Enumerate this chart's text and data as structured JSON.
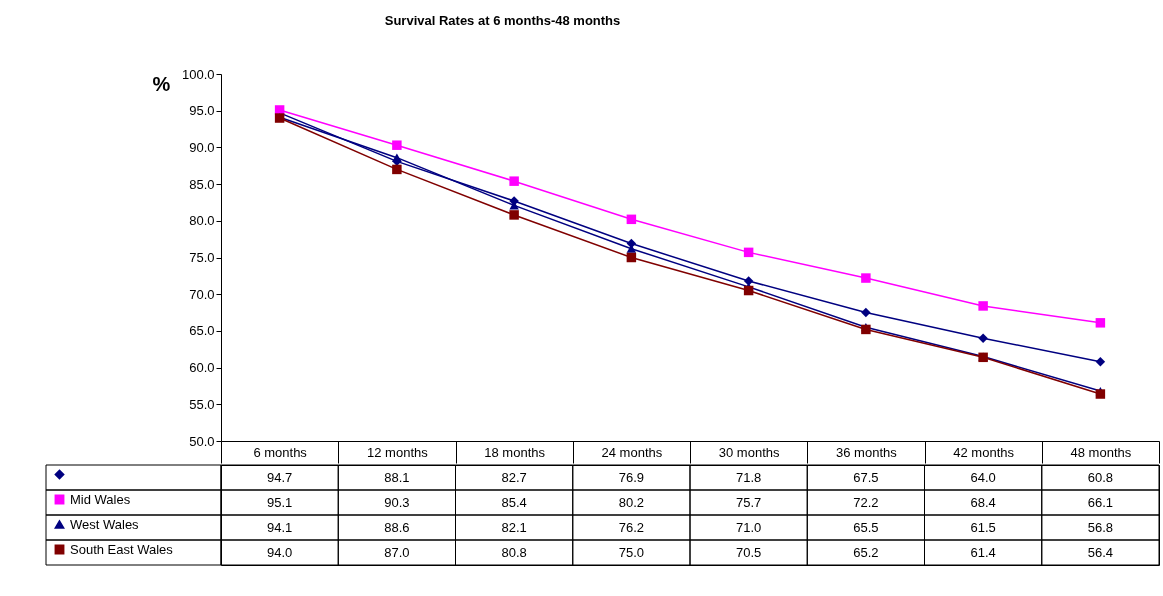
{
  "chart_data": {
    "type": "line",
    "title": "Survival Rates at 6 months-48 months",
    "ylabel": "%",
    "categories": [
      "6 months",
      "12 months",
      "18 months",
      "24 months",
      "30 months",
      "36 months",
      "42 months",
      "48 months"
    ],
    "series": [
      {
        "color": "#000080",
        "marker": "diamond",
        "values": [
          94.7,
          88.1,
          82.7,
          76.9,
          71.8,
          67.5,
          64.0,
          60.8
        ],
        "value_labels": [
          "94.7",
          "88.1",
          "82.7",
          "76.9",
          "71.8",
          "67.5",
          "64.0",
          "60.8"
        ]
      },
      {
        "name": "Mid Wales",
        "color": "#ff00ff",
        "marker": "square",
        "values": [
          95.1,
          90.3,
          85.4,
          80.2,
          75.7,
          72.2,
          68.4,
          66.1
        ],
        "value_labels": [
          "95.1",
          "90.3",
          "85.4",
          "80.2",
          "75.7",
          "72.2",
          "68.4",
          "66.1"
        ]
      },
      {
        "name": "West Wales",
        "color": "#000080",
        "marker": "triangle",
        "values": [
          94.1,
          88.6,
          82.1,
          76.2,
          71.0,
          65.5,
          61.5,
          56.8
        ],
        "value_labels": [
          "94.1",
          "88.6",
          "82.1",
          "76.2",
          "71.0",
          "65.5",
          "61.5",
          "56.8"
        ]
      },
      {
        "name": "South East Wales",
        "color": "#800000",
        "marker": "square",
        "values": [
          94.0,
          87.0,
          80.8,
          75.0,
          70.5,
          65.2,
          61.4,
          56.4
        ],
        "value_labels": [
          "94.0",
          "87.0",
          "80.8",
          "75.0",
          "70.5",
          "65.2",
          "61.4",
          "56.4"
        ]
      }
    ],
    "ylim": [
      50,
      100
    ],
    "yticks": [
      {
        "value": 50,
        "label": "50.0"
      },
      {
        "value": 55,
        "label": "55.0"
      },
      {
        "value": 60,
        "label": "60.0"
      },
      {
        "value": 65,
        "label": "65.0"
      },
      {
        "value": 70,
        "label": "70.0"
      },
      {
        "value": 75,
        "label": "75.0"
      },
      {
        "value": 80,
        "label": "80.0"
      },
      {
        "value": 85,
        "label": "85.0"
      },
      {
        "value": 90,
        "label": "90.0"
      },
      {
        "value": 95,
        "label": "95.0"
      },
      {
        "value": 100,
        "label": "100.0"
      }
    ],
    "grid": false,
    "legend": "bottom left"
  }
}
